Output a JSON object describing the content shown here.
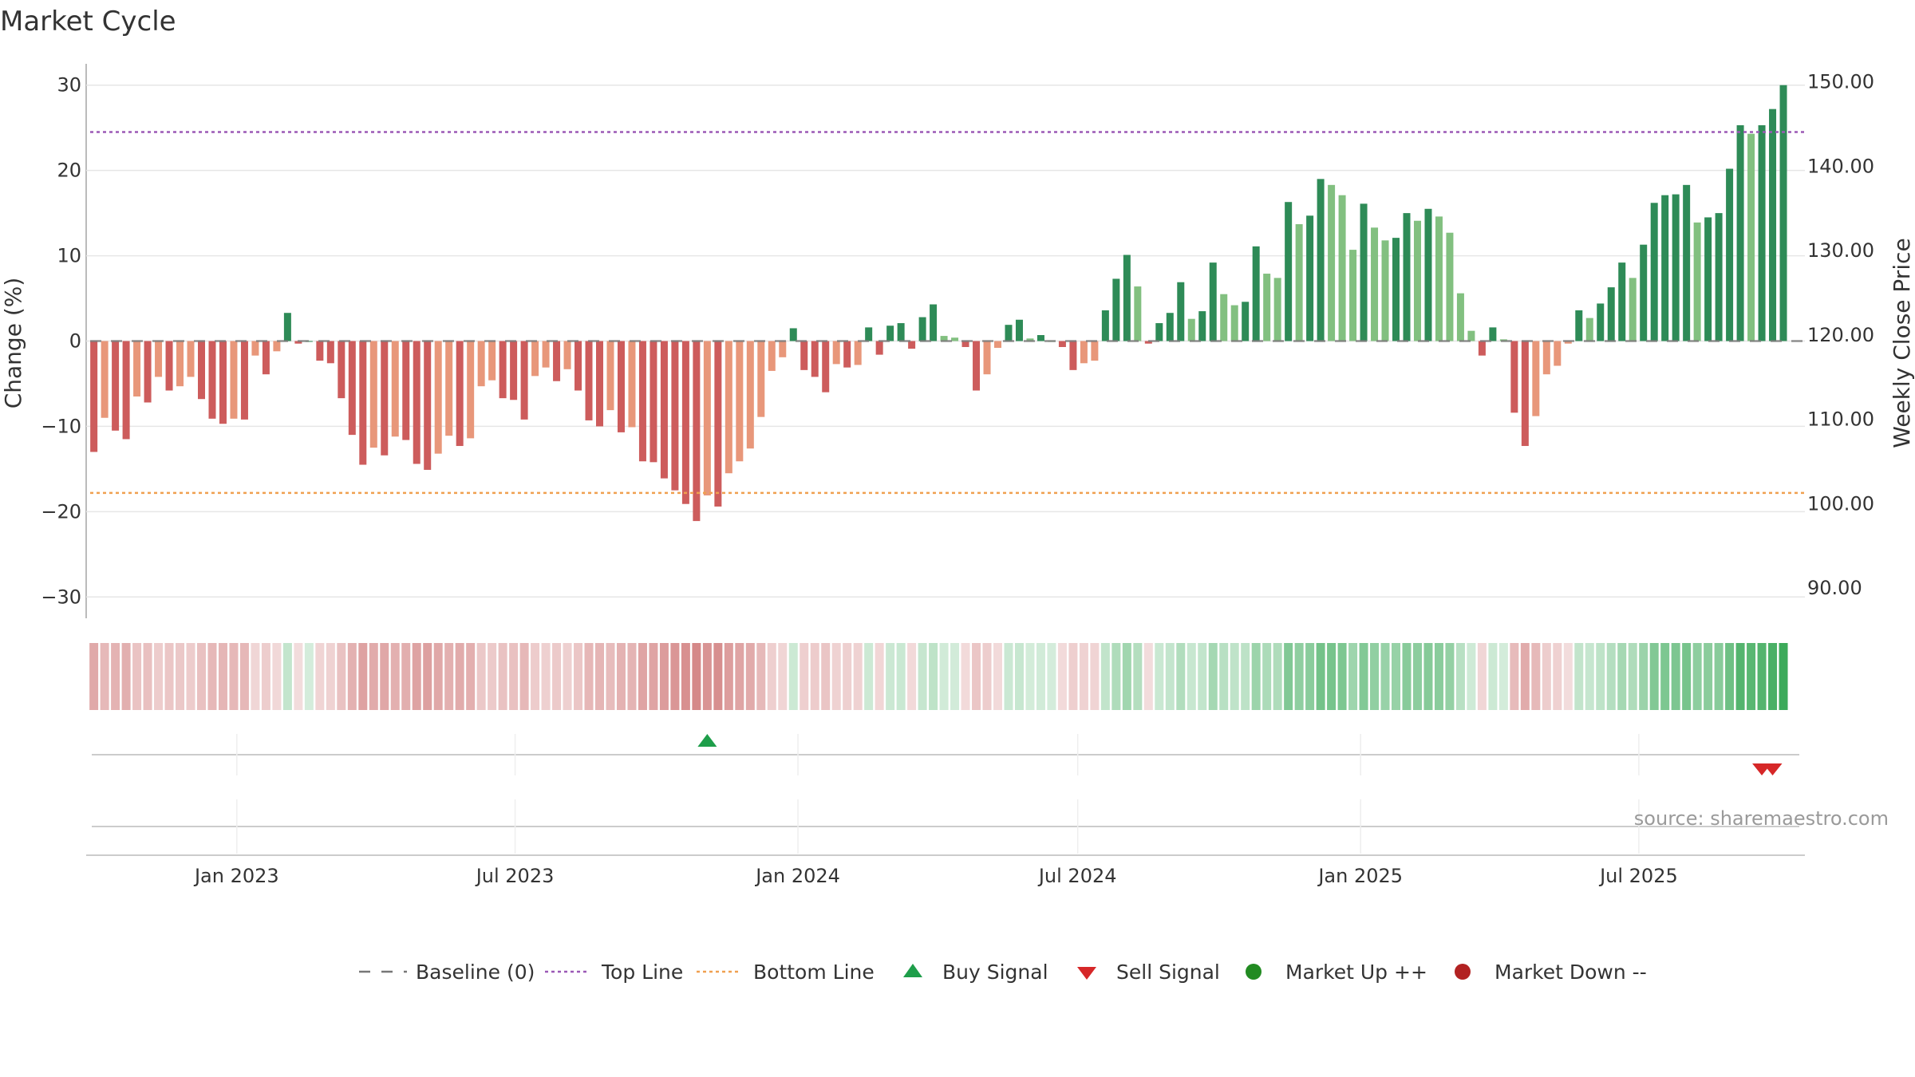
{
  "chart_data": {
    "type": "bar",
    "title": "Market Cycle",
    "ylabel": "Change (%)",
    "y2label": "Weekly Close Price",
    "source": "source: sharemaestro.com",
    "ylim": [
      -32.5,
      32.5
    ],
    "y2lim": [
      86.43,
      152.14
    ],
    "yticks": [
      30,
      20,
      10,
      0,
      -10,
      -20,
      -30
    ],
    "yticklabels": [
      "30",
      "20",
      "10",
      "0",
      "−10",
      "−20",
      "−30"
    ],
    "y2ticks": [
      150,
      140,
      130,
      120,
      110,
      100,
      90
    ],
    "y2ticklabels": [
      "150.00",
      "140.00",
      "130.00",
      "120.00",
      "110.00",
      "100.00",
      "90.00"
    ],
    "xlim": [
      "2022-09-25",
      "2025-10-17"
    ],
    "xticks": [
      "2023-01-01",
      "2023-07-01",
      "2024-01-01",
      "2024-07-01",
      "2025-01-01",
      "2025-07-01"
    ],
    "xticklabels": [
      "Jan 2023",
      "Jul 2023",
      "Jan 2024",
      "Jul 2024",
      "Jan 2025",
      "Jul 2025"
    ],
    "start_date": "2022-09-30",
    "interval_days": 7,
    "grid": true,
    "colors": {
      "strong_up": "#2e8b57",
      "weak_up": "#82c080",
      "weak_down": "#e8977a",
      "strong_down": "#cd5c5c",
      "top_line": "#9b59b6",
      "bottom_line": "#f0a050",
      "baseline": "#777777",
      "buy": "#1e9e4a",
      "sell": "#d62728",
      "market_up": "#228b22",
      "market_down": "#b22222"
    },
    "top_line": 24.5,
    "bottom_line": -17.8,
    "values": [
      -13,
      -9,
      -10.5,
      -11.5,
      -6.5,
      -7.2,
      -4.2,
      -5.8,
      -5.3,
      -4.2,
      -6.8,
      -9.1,
      -9.7,
      -9.1,
      -9.2,
      -1.7,
      -3.9,
      -1.2,
      3.3,
      -0.3,
      0,
      -2.3,
      -2.6,
      -6.7,
      -11,
      -14.5,
      -12.5,
      -13.4,
      -11.2,
      -11.6,
      -14.4,
      -15.1,
      -13.2,
      -11.1,
      -12.3,
      -11.4,
      -5.3,
      -4.6,
      -6.7,
      -6.9,
      -9.2,
      -4.1,
      -3.1,
      -4.7,
      -3.3,
      -5.8,
      -9.3,
      -10,
      -8.1,
      -10.7,
      -10.1,
      -14.1,
      -14.2,
      -16.1,
      -17.5,
      -19.1,
      -21.1,
      -18.1,
      -19.4,
      -15.5,
      -14.1,
      -12.6,
      -8.9,
      -3.5,
      -1.9,
      1.5,
      -3.4,
      -4.2,
      -6,
      -2.7,
      -3.1,
      -2.8,
      1.6,
      -1.6,
      1.8,
      2.1,
      -0.9,
      2.8,
      4.3,
      0.6,
      0.4,
      -0.7,
      -5.8,
      -3.9,
      -0.8,
      1.9,
      2.5,
      0.3,
      0.7,
      0,
      -0.7,
      -3.4,
      -2.6,
      -2.3,
      3.6,
      7.3,
      10.1,
      6.4,
      -0.3,
      2.1,
      3.3,
      6.9,
      2.6,
      3.5,
      9.2,
      5.5,
      4.2,
      4.6,
      11.1,
      7.9,
      7.4,
      16.3,
      13.7,
      14.7,
      19,
      18.3,
      17.1,
      10.7,
      16.1,
      13.3,
      11.8,
      12.1,
      15,
      14.1,
      15.5,
      14.6,
      12.7,
      5.6,
      1.2,
      -1.7,
      1.6,
      0.2,
      -8.4,
      -12.3,
      -8.8,
      -3.9,
      -2.9,
      -0.3,
      3.6,
      2.7,
      4.4,
      6.3,
      9.2,
      7.4,
      11.3,
      16.2,
      17.1,
      17.2,
      18.3,
      13.9,
      14.5,
      15,
      20.2,
      25.3,
      24.3,
      25.3,
      27.2,
      30
    ],
    "buy_signals": [
      "2023-11-03"
    ],
    "sell_signals": [
      "2025-09-19",
      "2025-09-26"
    ],
    "legend": [
      {
        "label": "Baseline (0)",
        "symbol": "dash"
      },
      {
        "label": "Top Line",
        "symbol": "dot-purple"
      },
      {
        "label": "Bottom Line",
        "symbol": "dot-orange"
      },
      {
        "label": "Buy Signal",
        "symbol": "triangle-up"
      },
      {
        "label": "Sell Signal",
        "symbol": "triangle-down"
      },
      {
        "label": "Market Up ++",
        "symbol": "circle-green"
      },
      {
        "label": "Market Down --",
        "symbol": "circle-red"
      }
    ]
  }
}
